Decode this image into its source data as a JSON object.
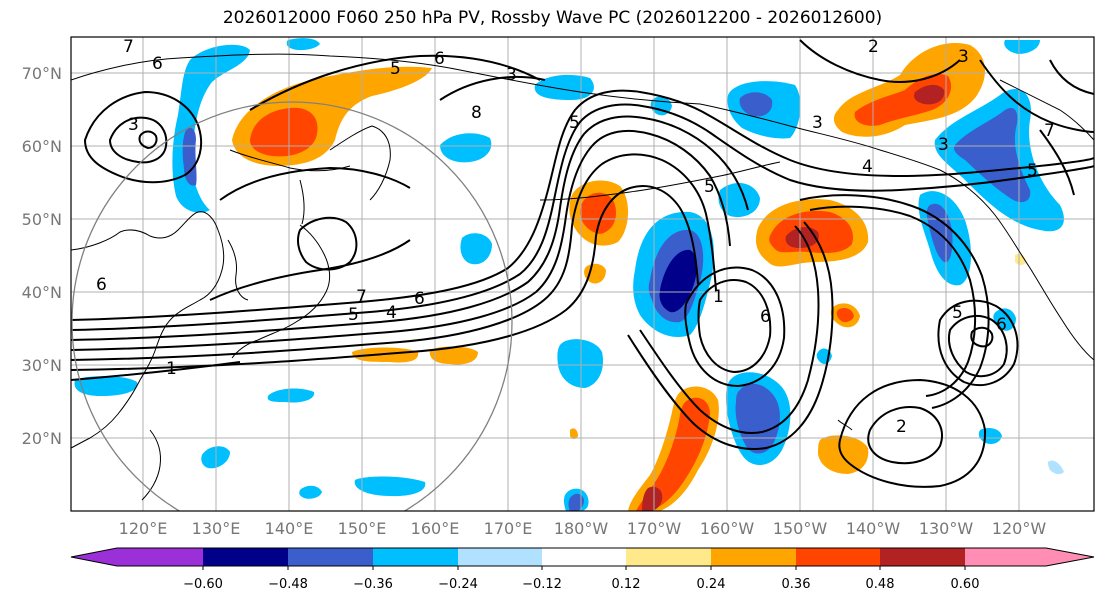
{
  "title": "2026012000 F060 250 hPa PV, Rossby Wave PC (2026012200 - 2026012600)",
  "latitude_labels": [
    "70°N",
    "60°N",
    "50°N",
    "40°N",
    "30°N",
    "20°N"
  ],
  "longitude_labels": [
    "120°E",
    "130°E",
    "140°E",
    "150°E",
    "160°E",
    "170°E",
    "180°W",
    "170°W",
    "160°W",
    "150°W",
    "140°W",
    "130°W",
    "120°W"
  ],
  "colorbar": {
    "ticks": [
      "−0.60",
      "−0.48",
      "−0.36",
      "−0.24",
      "−0.12",
      "0.12",
      "0.24",
      "0.36",
      "0.48",
      "0.60"
    ],
    "colors": [
      "#9b30d9",
      "#00008b",
      "#3a5fcd",
      "#00bfff",
      "#b0e2ff",
      "#ffffff",
      "#ffe98a",
      "#ffa500",
      "#ff4500",
      "#b22222",
      "#ff8db4"
    ]
  },
  "contour_labels": [
    "7",
    "6",
    "3",
    "5",
    "6",
    "3",
    "8",
    "5",
    "3",
    "5",
    "2",
    "3",
    "4",
    "7",
    "1",
    "5",
    "4",
    "6",
    "6",
    "1",
    "6",
    "5",
    "6",
    "2",
    "3",
    "7",
    "5"
  ],
  "circle_center": {
    "lat": 38,
    "lon": 140
  }
}
